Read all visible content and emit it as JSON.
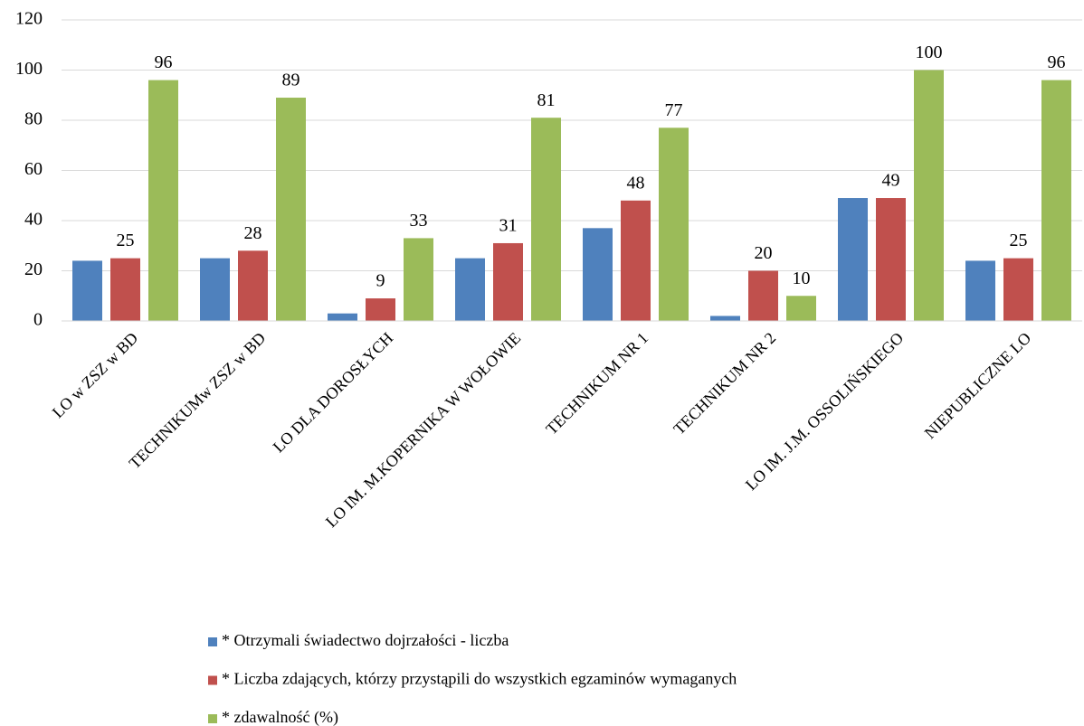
{
  "chart_data": {
    "type": "bar",
    "categories": [
      "LO w ZSZ w BD",
      "TECHNIKUMw ZSZ w BD",
      "LO DLA DOROSŁYCH",
      "LO IM. M.KOPERNIKA W WOŁOWIE",
      "TECHNIKUM NR 1",
      "TECHNIKUM NR 2",
      "LO IM. J.M. OSSOLIŃSKIEGO",
      "NIEPUBLICZNE LO"
    ],
    "series": [
      {
        "name": "* Otrzymali świadectwo dojrzałości - liczba",
        "color": "#4f81bd",
        "values": [
          24,
          25,
          3,
          25,
          37,
          2,
          49,
          24
        ],
        "show_labels": false
      },
      {
        "name": "* Liczba zdających, którzy przystąpili do wszystkich egzaminów wymaganych",
        "color": "#c0504d",
        "values": [
          25,
          28,
          9,
          31,
          48,
          20,
          49,
          25
        ],
        "show_labels": true
      },
      {
        "name": "* zdawalność (%)",
        "color": "#9bbb59",
        "values": [
          96,
          89,
          33,
          81,
          77,
          10,
          100,
          96
        ],
        "show_labels": true
      }
    ],
    "ylim": [
      0,
      120
    ],
    "yticks": [
      0,
      20,
      40,
      60,
      80,
      100,
      120
    ],
    "grid": true,
    "legend": "bottom"
  }
}
